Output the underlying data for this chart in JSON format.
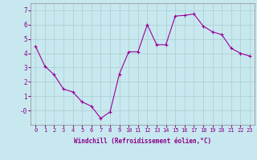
{
  "x": [
    0,
    1,
    2,
    3,
    4,
    5,
    6,
    7,
    8,
    9,
    10,
    11,
    12,
    13,
    14,
    15,
    16,
    17,
    18,
    19,
    20,
    21,
    22,
    23
  ],
  "y": [
    4.5,
    3.1,
    2.5,
    1.5,
    1.3,
    0.6,
    0.3,
    -0.55,
    -0.1,
    2.55,
    4.1,
    4.1,
    6.0,
    4.6,
    4.6,
    6.6,
    6.65,
    6.75,
    5.9,
    5.5,
    5.3,
    4.35,
    4.0,
    3.8
  ],
  "line_color": "#990099",
  "marker": "+",
  "markersize": 3,
  "linewidth": 0.8,
  "bg_color": "#c8e8f0",
  "grid_color": "#aacccc",
  "xlabel": "Windchill (Refroidissement éolien,°C)",
  "ylim": [
    -1,
    7.5
  ],
  "xlim": [
    -0.5,
    23.5
  ],
  "yticks": [
    0,
    1,
    2,
    3,
    4,
    5,
    6,
    7
  ],
  "ytick_labels": [
    "-0",
    "1",
    "2",
    "3",
    "4",
    "5",
    "6",
    "7"
  ],
  "xticks": [
    0,
    1,
    2,
    3,
    4,
    5,
    6,
    7,
    8,
    9,
    10,
    11,
    12,
    13,
    14,
    15,
    16,
    17,
    18,
    19,
    20,
    21,
    22,
    23
  ],
  "tick_color": "#880088",
  "xlabel_color": "#880088",
  "tick_fontsize": 5.0,
  "xlabel_fontsize": 5.5
}
